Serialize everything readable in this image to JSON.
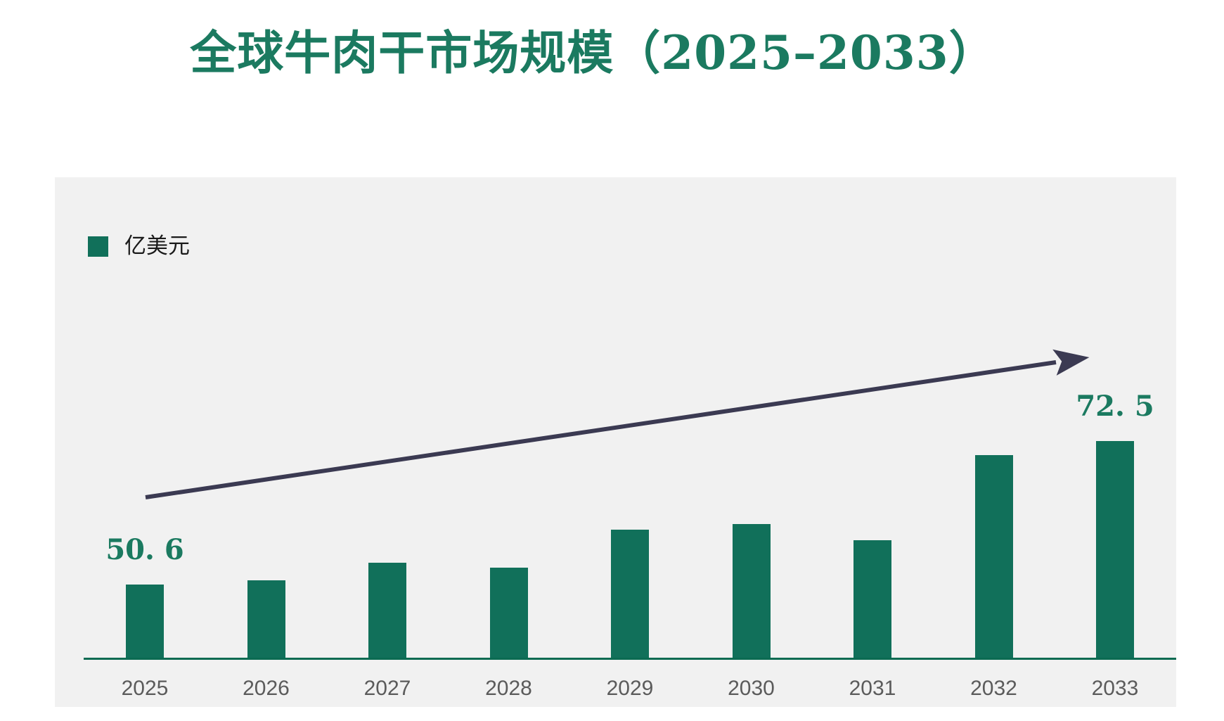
{
  "title": "全球牛肉干市场规模（2025–2033）",
  "legend": {
    "label": "亿美元",
    "position": "top-left"
  },
  "chart_data": {
    "type": "bar",
    "title": "全球牛肉干市场规模（2025–2033）",
    "unit_label": "亿美元",
    "categories": [
      "2025",
      "2026",
      "2027",
      "2028",
      "2029",
      "2030",
      "2031",
      "2032",
      "2033"
    ],
    "values": [
      50.6,
      51.2,
      53.9,
      53.2,
      58.9,
      59.8,
      57.3,
      70.3,
      72.5
    ],
    "data_labels": [
      "50. 6",
      "",
      "",
      "",
      "",
      "",
      "",
      "",
      "72. 5"
    ],
    "labeled_points": [
      {
        "category": "2025",
        "value": 50.6
      },
      {
        "category": "2033",
        "value": 72.5
      }
    ],
    "value_axis_min": 39.4,
    "value_axis_visible": false,
    "grid": false,
    "x_axis_line": true,
    "legend_position": "top-left",
    "annotations": [
      {
        "type": "trend-arrow",
        "direction": "up-right"
      }
    ]
  },
  "colors": {
    "bar": "#11705a",
    "title_text": "#1b7a60",
    "value_label_text": "#1b7a60",
    "axis_line": "#0c6b52",
    "tick_label_text": "#5b5b5b",
    "arrow": "#3b3a52",
    "panel_background": "#f1f1f1",
    "page_background": "#ffffff",
    "legend_text": "#1a1a1a"
  }
}
